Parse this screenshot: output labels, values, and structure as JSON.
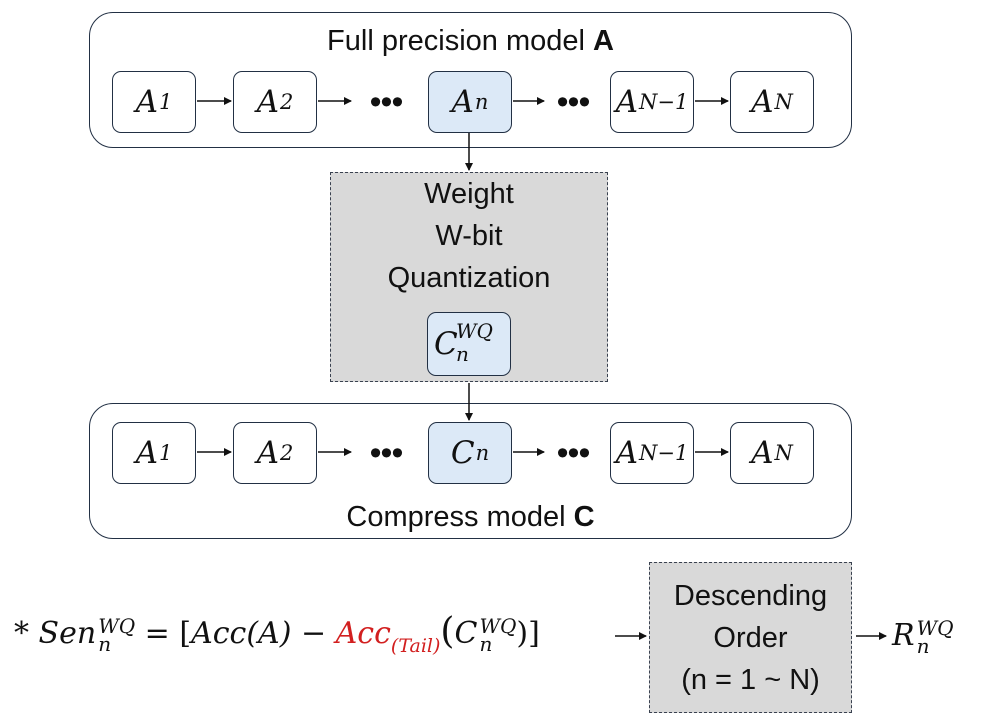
{
  "full_model": {
    "title": "Full precision model ",
    "title_bold": "A",
    "nodes": [
      {
        "letter": "A",
        "sub": "1"
      },
      {
        "letter": "A",
        "sub": "2"
      },
      {
        "letter": "A",
        "sub": "n"
      },
      {
        "letter": "A",
        "sub": "N−1"
      },
      {
        "letter": "A",
        "sub": "N"
      }
    ]
  },
  "quantization_box": {
    "lines": [
      "Weight",
      "W-bit",
      "Quantization"
    ],
    "node": {
      "letter": "C",
      "sup": "WQ",
      "sub": "n"
    }
  },
  "compress_model": {
    "title": "Compress model ",
    "title_bold": "C",
    "nodes": [
      {
        "letter": "A",
        "sub": "1"
      },
      {
        "letter": "A",
        "sub": "2"
      },
      {
        "letter": "C",
        "sub": "n"
      },
      {
        "letter": "A",
        "sub": "N−1"
      },
      {
        "letter": "A",
        "sub": "N"
      }
    ]
  },
  "ellipsis": "•••",
  "formula": {
    "star": "*",
    "sen": "Sen",
    "sen_sup": "WQ",
    "sen_sub": "n",
    "equals": " = [",
    "acc_a": "Acc(A)",
    "minus": " − ",
    "acc_tail": "Acc",
    "tail_sub": "(Tail)",
    "open_paren": "(",
    "c": "C",
    "c_sup": "WQ",
    "c_sub": "n",
    "close": ")]"
  },
  "order_box": {
    "lines": [
      "Descending",
      "Order",
      "(n = 1 ~ N)"
    ]
  },
  "result": {
    "letter": "R",
    "sup": "WQ",
    "sub": "n"
  },
  "colors": {
    "highlight_fill": "#dce9f7",
    "gray_fill": "#d9d9d9",
    "tail_red": "#d21f1f",
    "border": "#223044"
  }
}
